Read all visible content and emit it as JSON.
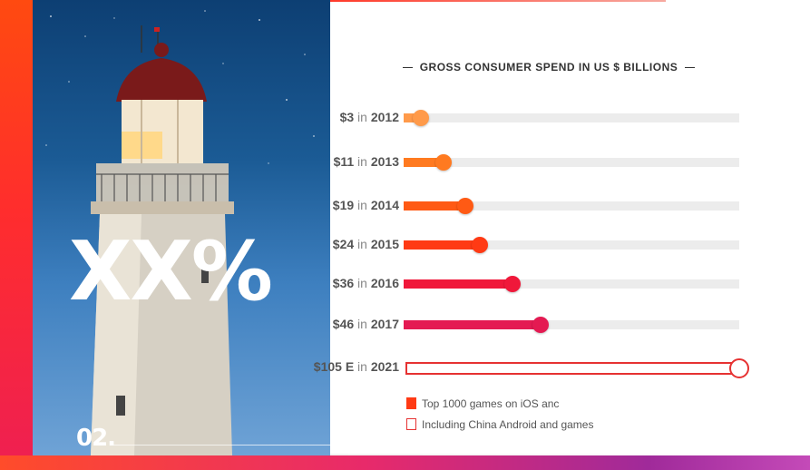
{
  "slide": {
    "big_text": "XX%",
    "number": "02."
  },
  "chart": {
    "title": "GROSS CONSUMER SPEND IN US $ BILLIONS",
    "connector": "in",
    "rows": [
      {
        "value": "$3",
        "year": "2012",
        "amount": 3,
        "color": "#ff9a4a"
      },
      {
        "value": "$11",
        "year": "2013",
        "amount": 11,
        "color": "#ff7a20"
      },
      {
        "value": "$19",
        "year": "2014",
        "amount": 19,
        "color": "#ff5a14"
      },
      {
        "value": "$24",
        "year": "2015",
        "amount": 24,
        "color": "#ff3a14"
      },
      {
        "value": "$36",
        "year": "2016",
        "amount": 36,
        "color": "#f0183a"
      },
      {
        "value": "$46",
        "year": "2017",
        "amount": 46,
        "color": "#e41a52"
      },
      {
        "value": "$105 E",
        "year": "2021",
        "amount": 105,
        "color": "#e63232"
      }
    ],
    "legend": [
      {
        "label": "Top 1000 games on iOS anc",
        "style": "filled",
        "color": "#ff3a14"
      },
      {
        "label": "Including China Android and games",
        "style": "outline",
        "color": "#e63232"
      }
    ]
  }
}
